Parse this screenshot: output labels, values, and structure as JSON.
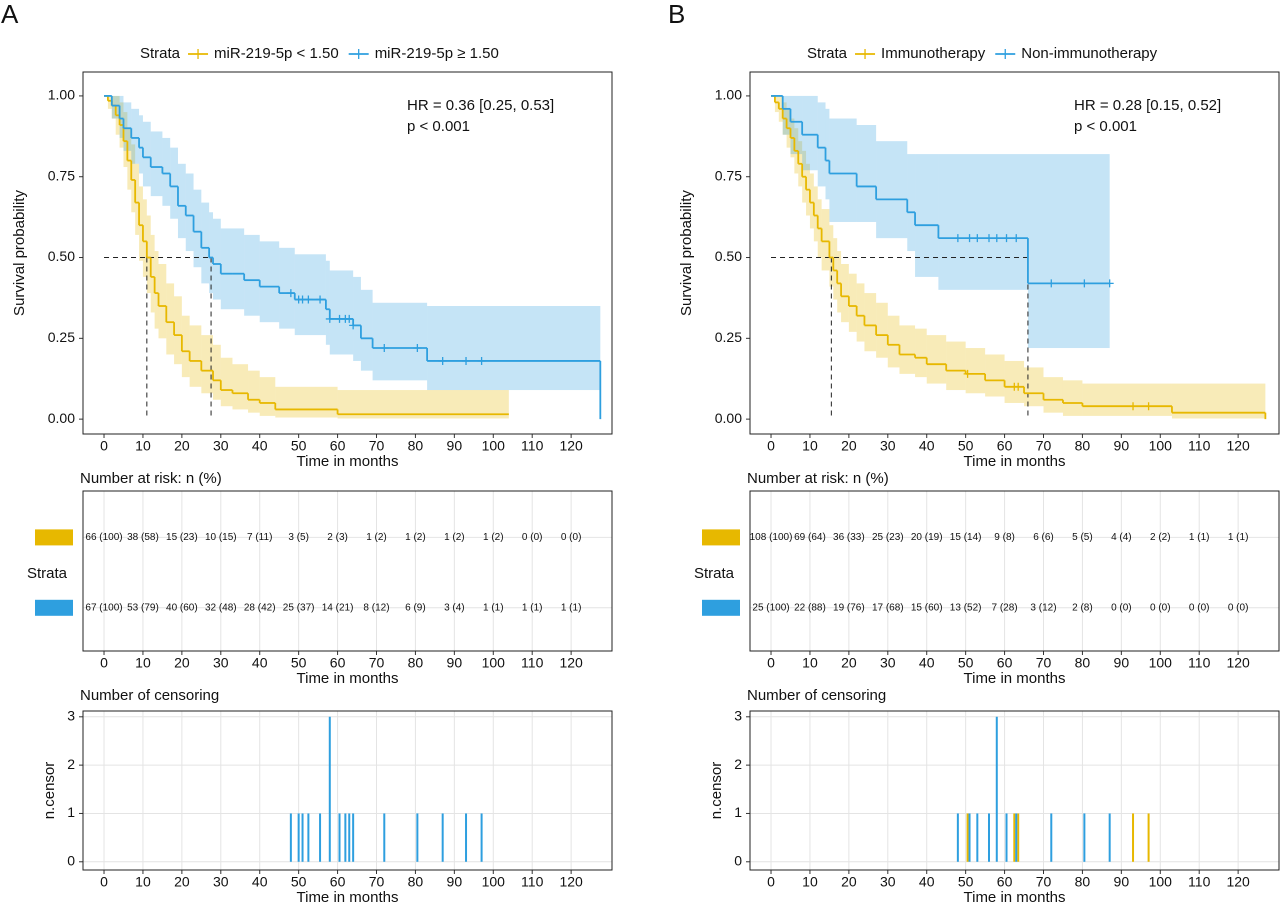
{
  "chart_data": [
    {
      "type": "km",
      "panel": "A",
      "legend_title": "Strata",
      "annotations": [
        "HR = 0.36 [0.25, 0.53]",
        "p < 0.001"
      ],
      "xlabel": "Time in months",
      "ylabel": "Survival probability",
      "xlim": [
        -5.4,
        130.5
      ],
      "ylim": [
        -0.046,
        1.074
      ],
      "xticks": [
        0,
        10,
        20,
        30,
        40,
        50,
        60,
        70,
        80,
        90,
        100,
        110,
        120
      ],
      "yticks": [
        {
          "value": 0,
          "label": "0.00"
        },
        {
          "value": 0.25,
          "label": "0.25"
        },
        {
          "value": 0.5,
          "label": "0.50"
        },
        {
          "value": 0.75,
          "label": "0.75"
        },
        {
          "value": 1,
          "label": "1.00"
        }
      ],
      "median_probability": 0.5,
      "medians": [
        11,
        27.5
      ],
      "series": [
        {
          "name": "miR-219-5p < 1.50",
          "color": "#E7B800",
          "x": [
            0,
            1,
            2,
            3,
            4,
            5,
            6,
            7,
            8,
            9,
            10,
            11,
            12,
            13,
            14,
            16,
            18,
            20,
            22,
            25,
            28,
            30,
            33,
            37,
            40,
            44,
            60,
            104
          ],
          "values": [
            1,
            0.985,
            0.97,
            0.94,
            0.91,
            0.86,
            0.8,
            0.74,
            0.67,
            0.6,
            0.55,
            0.5,
            0.44,
            0.39,
            0.35,
            0.3,
            0.26,
            0.21,
            0.18,
            0.15,
            0.12,
            0.09,
            0.08,
            0.06,
            0.05,
            0.03,
            0.015,
            0.015
          ],
          "lower": [
            1,
            0.96,
            0.93,
            0.88,
            0.84,
            0.78,
            0.71,
            0.64,
            0.57,
            0.49,
            0.44,
            0.39,
            0.33,
            0.28,
            0.25,
            0.2,
            0.17,
            0.13,
            0.1,
            0.08,
            0.06,
            0.04,
            0.03,
            0.02,
            0.01,
            0.005,
            0.002,
            0.002
          ],
          "upper": [
            1,
            1,
            1,
            1,
            0.98,
            0.95,
            0.9,
            0.85,
            0.79,
            0.72,
            0.68,
            0.63,
            0.57,
            0.52,
            0.48,
            0.42,
            0.38,
            0.32,
            0.29,
            0.26,
            0.23,
            0.19,
            0.17,
            0.15,
            0.13,
            0.1,
            0.09,
            0.09
          ],
          "censor": []
        },
        {
          "name": "miR-219-5p ≥ 1.50",
          "color": "#2E9FDF",
          "x": [
            0,
            2,
            4,
            5,
            7,
            9,
            10,
            12,
            15,
            17,
            19,
            21,
            23,
            25,
            27,
            28,
            30,
            33,
            36,
            40,
            45,
            49,
            57,
            58,
            64,
            66,
            69,
            83,
            127.5
          ],
          "values": [
            1,
            0.97,
            0.93,
            0.9,
            0.87,
            0.84,
            0.81,
            0.78,
            0.76,
            0.72,
            0.66,
            0.63,
            0.58,
            0.53,
            0.5,
            0.48,
            0.45,
            0.45,
            0.43,
            0.41,
            0.39,
            0.37,
            0.34,
            0.31,
            0.29,
            0.25,
            0.22,
            0.18,
            0
          ],
          "lower": [
            1,
            0.93,
            0.87,
            0.83,
            0.79,
            0.76,
            0.72,
            0.69,
            0.66,
            0.62,
            0.56,
            0.52,
            0.47,
            0.42,
            0.39,
            0.37,
            0.34,
            0.34,
            0.32,
            0.3,
            0.28,
            0.26,
            0.23,
            0.2,
            0.18,
            0.15,
            0.12,
            0.09,
            0
          ],
          "upper": [
            1,
            1,
            1,
            0.98,
            0.96,
            0.94,
            0.92,
            0.89,
            0.87,
            0.84,
            0.79,
            0.76,
            0.71,
            0.67,
            0.64,
            0.62,
            0.59,
            0.59,
            0.57,
            0.55,
            0.53,
            0.51,
            0.49,
            0.46,
            0.44,
            0.4,
            0.36,
            0.35,
            0
          ],
          "censor": [
            48,
            50,
            51,
            52.5,
            55.5,
            58,
            60.5,
            62,
            63,
            64,
            72,
            80.5,
            87,
            93,
            97
          ]
        }
      ]
    },
    {
      "type": "risk_table",
      "title": "Number at risk: n (%)",
      "ylabel": "Strata",
      "xlabel": "Time in months",
      "xlim": [
        -5.4,
        130.5
      ],
      "xticks": [
        0,
        10,
        20,
        30,
        40,
        50,
        60,
        70,
        80,
        90,
        100,
        110,
        120
      ],
      "grid": true,
      "x": [
        0,
        10,
        20,
        30,
        40,
        50,
        60,
        70,
        80,
        90,
        100,
        110,
        120
      ],
      "series": [
        {
          "color": "#E7B800",
          "labels": [
            "66 (100)",
            "38 (58)",
            "15 (23)",
            "10 (15)",
            "7 (11)",
            "3 (5)",
            "2 (3)",
            "1 (2)",
            "1 (2)",
            "1 (2)",
            "1 (2)",
            "0 (0)",
            "0 (0)"
          ]
        },
        {
          "color": "#2E9FDF",
          "labels": [
            "67 (100)",
            "53 (79)",
            "40 (60)",
            "32 (48)",
            "28 (42)",
            "25 (37)",
            "14 (21)",
            "8 (12)",
            "6 (9)",
            "3 (4)",
            "1 (1)",
            "1 (1)",
            "1 (1)"
          ]
        }
      ]
    },
    {
      "type": "censor",
      "title": "Number of censoring",
      "ylabel": "n.censor",
      "xlabel": "Time in months",
      "xlim": [
        -5.4,
        130.5
      ],
      "ylim": [
        -0.17,
        3.12
      ],
      "xticks": [
        0,
        10,
        20,
        30,
        40,
        50,
        60,
        70,
        80,
        90,
        100,
        110,
        120
      ],
      "yticks": [
        0,
        1,
        2,
        3
      ],
      "grid": true,
      "series": [
        {
          "color": "#2E9FDF",
          "x": [
            48,
            50,
            51,
            52.5,
            55.5,
            58,
            60.5,
            62,
            63,
            64,
            72,
            80.5,
            87,
            93,
            97
          ],
          "values": [
            1,
            1,
            1,
            1,
            1,
            3,
            1,
            1,
            1,
            1,
            1,
            1,
            1,
            1,
            1
          ]
        }
      ]
    },
    {
      "type": "km",
      "panel": "B",
      "legend_title": "Strata",
      "annotations": [
        "HR = 0.28 [0.15, 0.52]",
        "p < 0.001"
      ],
      "xlabel": "Time in months",
      "ylabel": "Survival probability",
      "xlim": [
        -5.4,
        130.5
      ],
      "ylim": [
        -0.046,
        1.074
      ],
      "xticks": [
        0,
        10,
        20,
        30,
        40,
        50,
        60,
        70,
        80,
        90,
        100,
        110,
        120
      ],
      "yticks": [
        {
          "value": 0,
          "label": "0.00"
        },
        {
          "value": 0.25,
          "label": "0.25"
        },
        {
          "value": 0.5,
          "label": "0.50"
        },
        {
          "value": 0.75,
          "label": "0.75"
        },
        {
          "value": 1,
          "label": "1.00"
        }
      ],
      "median_probability": 0.5,
      "medians": [
        15.5,
        66
      ],
      "series": [
        {
          "name": "Immunotherapy",
          "color": "#E7B800",
          "x": [
            0,
            1,
            2,
            3,
            4,
            5,
            6,
            7,
            8,
            9,
            10,
            11,
            12,
            13,
            15,
            16,
            17,
            18,
            20,
            22,
            24,
            27,
            30,
            33,
            37,
            40,
            45,
            50,
            55,
            60,
            65,
            70,
            75,
            80,
            103,
            127
          ],
          "values": [
            1,
            0.98,
            0.96,
            0.93,
            0.9,
            0.87,
            0.83,
            0.79,
            0.75,
            0.71,
            0.67,
            0.63,
            0.59,
            0.55,
            0.5,
            0.46,
            0.42,
            0.38,
            0.35,
            0.32,
            0.29,
            0.26,
            0.23,
            0.2,
            0.19,
            0.17,
            0.15,
            0.14,
            0.12,
            0.1,
            0.08,
            0.06,
            0.05,
            0.04,
            0.02,
            0
          ],
          "lower": [
            1,
            0.95,
            0.92,
            0.88,
            0.84,
            0.81,
            0.76,
            0.72,
            0.67,
            0.63,
            0.59,
            0.55,
            0.5,
            0.46,
            0.41,
            0.37,
            0.33,
            0.3,
            0.27,
            0.24,
            0.21,
            0.19,
            0.16,
            0.14,
            0.13,
            0.11,
            0.09,
            0.08,
            0.07,
            0.05,
            0.04,
            0.02,
            0.01,
            0.01,
            0.002,
            0
          ],
          "upper": [
            1,
            1,
            1,
            0.98,
            0.96,
            0.93,
            0.9,
            0.86,
            0.83,
            0.79,
            0.76,
            0.72,
            0.68,
            0.65,
            0.6,
            0.56,
            0.52,
            0.48,
            0.45,
            0.42,
            0.39,
            0.36,
            0.32,
            0.29,
            0.28,
            0.26,
            0.24,
            0.22,
            0.2,
            0.18,
            0.16,
            0.13,
            0.12,
            0.11,
            0.11,
            0
          ],
          "censor": [
            50.5,
            62.5,
            63.5,
            93,
            97
          ]
        },
        {
          "name": "Non-immunotherapy",
          "color": "#2E9FDF",
          "x": [
            0,
            3,
            5,
            8,
            12,
            14,
            15,
            22,
            27,
            35,
            37,
            43,
            66,
            87
          ],
          "values": [
            1,
            0.96,
            0.92,
            0.88,
            0.84,
            0.8,
            0.76,
            0.72,
            0.68,
            0.64,
            0.6,
            0.56,
            0.42,
            0.42
          ],
          "lower": [
            1,
            0.88,
            0.82,
            0.77,
            0.72,
            0.68,
            0.61,
            0.61,
            0.56,
            0.52,
            0.44,
            0.4,
            0.22,
            0.22
          ],
          "upper": [
            1,
            1,
            1,
            1,
            0.98,
            0.96,
            0.93,
            0.91,
            0.86,
            0.82,
            0.82,
            0.82,
            0.82,
            0.82
          ],
          "censor": [
            48,
            51,
            53,
            56,
            58,
            60.5,
            63,
            72,
            80.5,
            87
          ]
        }
      ]
    },
    {
      "type": "risk_table",
      "title": "Number at risk: n (%)",
      "ylabel": "Strata",
      "xlabel": "Time in months",
      "xlim": [
        -5.4,
        130.5
      ],
      "xticks": [
        0,
        10,
        20,
        30,
        40,
        50,
        60,
        70,
        80,
        90,
        100,
        110,
        120
      ],
      "grid": true,
      "x": [
        0,
        10,
        20,
        30,
        40,
        50,
        60,
        70,
        80,
        90,
        100,
        110,
        120
      ],
      "series": [
        {
          "color": "#E7B800",
          "labels": [
            "108 (100)",
            "69 (64)",
            "36 (33)",
            "25 (23)",
            "20 (19)",
            "15 (14)",
            "9 (8)",
            "6 (6)",
            "5 (5)",
            "4 (4)",
            "2 (2)",
            "1 (1)",
            "1 (1)"
          ]
        },
        {
          "color": "#2E9FDF",
          "labels": [
            "25 (100)",
            "22 (88)",
            "19 (76)",
            "17 (68)",
            "15 (60)",
            "13 (52)",
            "7 (28)",
            "3 (12)",
            "2 (8)",
            "0 (0)",
            "0 (0)",
            "0 (0)",
            "0 (0)"
          ]
        }
      ]
    },
    {
      "type": "censor",
      "title": "Number of censoring",
      "ylabel": "n.censor",
      "xlabel": "Time in months",
      "xlim": [
        -5.4,
        130.5
      ],
      "ylim": [
        -0.17,
        3.12
      ],
      "xticks": [
        0,
        10,
        20,
        30,
        40,
        50,
        60,
        70,
        80,
        90,
        100,
        110,
        120
      ],
      "yticks": [
        0,
        1,
        2,
        3
      ],
      "grid": true,
      "series": [
        {
          "color": "#E7B800",
          "x": [
            50.5,
            62.5,
            63.5,
            93,
            97
          ],
          "values": [
            1,
            1,
            1,
            1,
            1
          ]
        },
        {
          "color": "#2E9FDF",
          "x": [
            48,
            51,
            53,
            56,
            58,
            60.5,
            63,
            72,
            80.5,
            87
          ],
          "values": [
            1,
            1,
            1,
            1,
            3,
            1,
            1,
            1,
            1,
            1
          ]
        }
      ]
    }
  ]
}
